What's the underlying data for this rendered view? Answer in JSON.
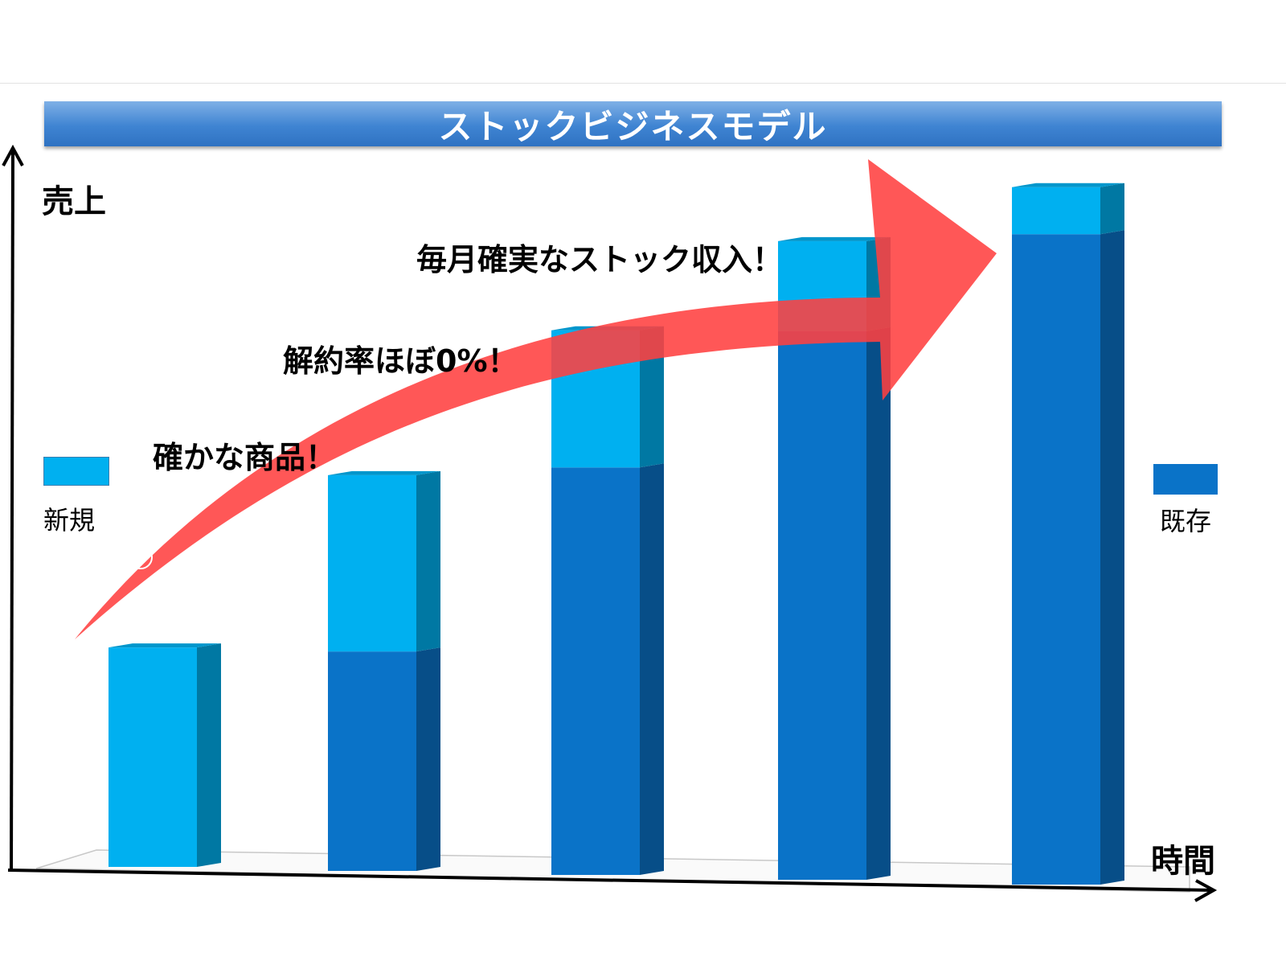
{
  "chart_data": {
    "type": "bar",
    "stacked": true,
    "title": "ストックビジネスモデル",
    "ylabel": "売上",
    "xlabel": "時間",
    "categories": [
      "",
      "",
      "",
      "",
      ""
    ],
    "series": [
      {
        "name": "既存",
        "color": "#0a73c8",
        "values": [
          0,
          280,
          520,
          700,
          830
        ]
      },
      {
        "name": "新規",
        "color": "#00b0f0",
        "values": [
          280,
          225,
          175,
          115,
          60
        ]
      }
    ],
    "ylim": [
      0,
      900
    ],
    "legend": "left-and-right",
    "grid": false
  },
  "annotations": {
    "a1": "確かな商品！",
    "a2": "解約率ほぼ0%！",
    "a3": "毎月確実なストック収入！"
  },
  "colors": {
    "arrow": "#ff4040",
    "new": "#00b0f0",
    "existing": "#0a73c8"
  }
}
